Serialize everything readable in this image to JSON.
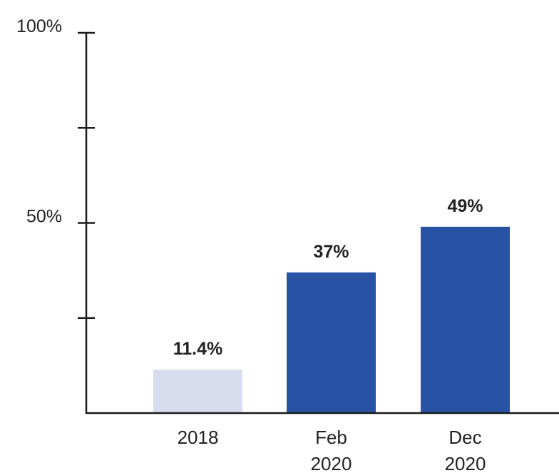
{
  "chart_data": {
    "type": "bar",
    "categories": [
      [
        "2018"
      ],
      [
        "Feb",
        "2020"
      ],
      [
        "Dec",
        "2020"
      ]
    ],
    "values": [
      11.4,
      37,
      49
    ],
    "data_labels": [
      "11.4%",
      "37%",
      "49%"
    ],
    "bar_colors": [
      "#d7ddee",
      "#2853a4",
      "#2853a4"
    ],
    "ylim": [
      0,
      100
    ],
    "yticks": [
      0,
      25,
      50,
      75,
      100
    ],
    "ytick_labels": {
      "100": "100%",
      "50": "50%"
    },
    "title": "",
    "xlabel": "",
    "ylabel": "",
    "grid": false,
    "legend": "none"
  }
}
